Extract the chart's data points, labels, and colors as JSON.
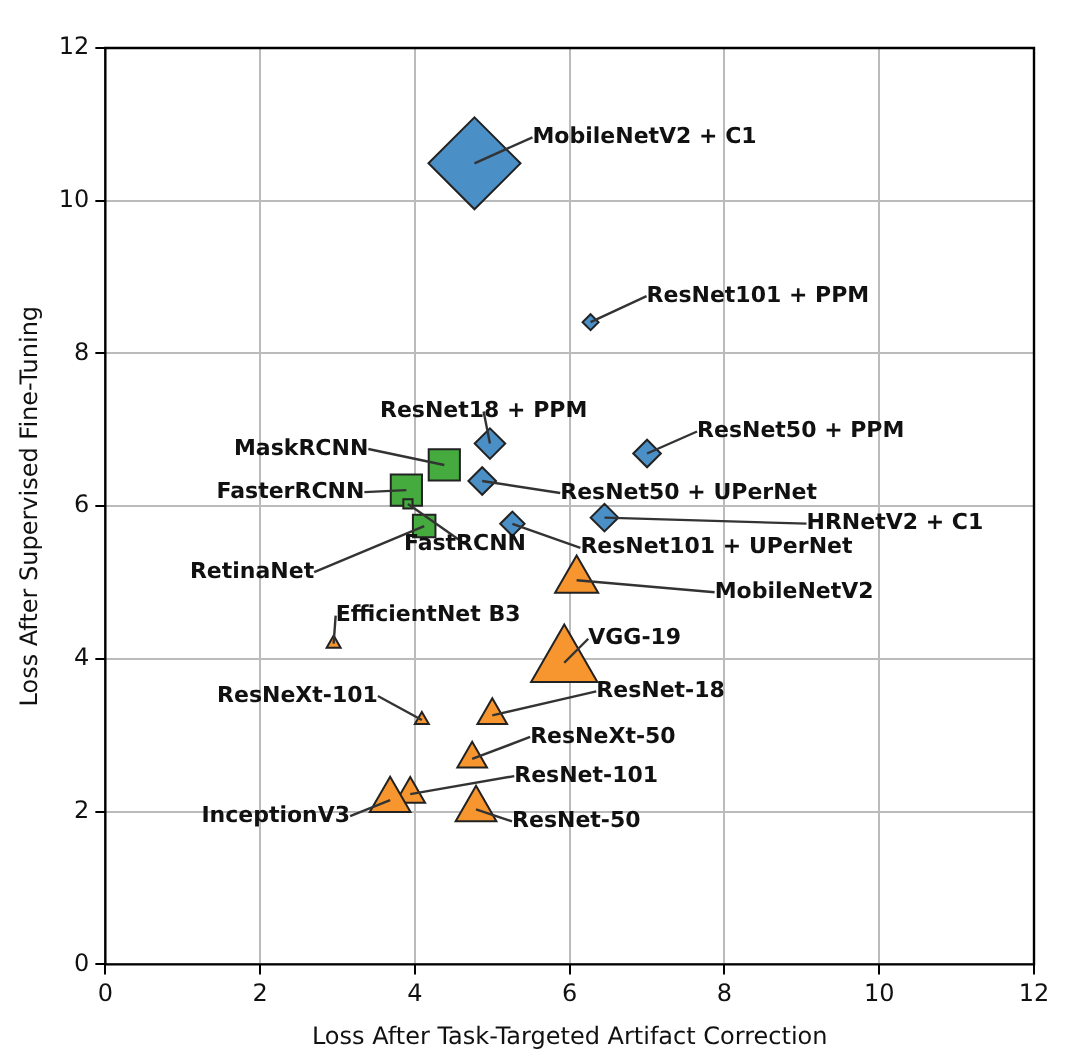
{
  "chart_data": {
    "type": "bubble",
    "xlabel": "Loss After Task-Targeted Artifact Correction",
    "ylabel": "Loss After Supervised Fine-Tuning",
    "xlim": [
      0,
      12
    ],
    "ylim": [
      0,
      12
    ],
    "xticks": [
      0,
      2,
      4,
      6,
      8,
      10,
      12
    ],
    "yticks": [
      0,
      2,
      4,
      6,
      8,
      10,
      12
    ],
    "grid": true,
    "legend": false,
    "series": [
      {
        "color": "#4a8fc6",
        "marker": "diamond",
        "x": [
          4.77,
          6.27,
          4.97,
          7.0,
          4.87,
          6.45,
          5.26
        ],
        "values": [
          10.49,
          8.41,
          6.82,
          6.69,
          6.33,
          5.85,
          5.77
        ],
        "sizes": [
          1,
          0.03,
          0.11,
          0.09,
          0.09,
          0.09,
          0.07
        ]
      },
      {
        "color": "#45ab3f",
        "marker": "square",
        "x": [
          4.38,
          3.89,
          3.91,
          4.12
        ],
        "values": [
          6.54,
          6.21,
          6.03,
          5.74
        ],
        "sizes": [
          0.23,
          0.23,
          0.02,
          0.12
        ]
      },
      {
        "color": "#f7952f",
        "marker": "triangle",
        "x": [
          6.09,
          2.95,
          5.93,
          5.0,
          4.09,
          4.74,
          3.94,
          3.68,
          4.79
        ],
        "values": [
          5.03,
          4.2,
          3.95,
          3.26,
          3.2,
          2.69,
          2.23,
          2.15,
          2.03
        ],
        "sizes": [
          0.19,
          0.02,
          0.45,
          0.09,
          0.02,
          0.09,
          0.09,
          0.17,
          0.17
        ]
      }
    ],
    "annotations": [
      {
        "text": "MobileNetV2 + C1",
        "x": 4.77,
        "y": 10.49
      },
      {
        "text": "ResNet101 + PPM",
        "x": 6.27,
        "y": 8.41
      },
      {
        "text": "ResNet18 + PPM",
        "x": 4.97,
        "y": 6.82
      },
      {
        "text": "ResNet50 + PPM",
        "x": 7.0,
        "y": 6.69
      },
      {
        "text": "ResNet50 + UPerNet",
        "x": 4.87,
        "y": 6.33
      },
      {
        "text": "HRNetV2 + C1",
        "x": 6.45,
        "y": 5.85
      },
      {
        "text": "ResNet101 + UPerNet",
        "x": 5.26,
        "y": 5.77
      },
      {
        "text": "MaskRCNN",
        "x": 4.38,
        "y": 6.54
      },
      {
        "text": "FasterRCNN",
        "x": 3.89,
        "y": 6.21
      },
      {
        "text": "FastRCNN",
        "x": 3.91,
        "y": 6.03
      },
      {
        "text": "RetinaNet",
        "x": 4.12,
        "y": 5.74
      },
      {
        "text": "MobileNetV2",
        "x": 6.09,
        "y": 5.03
      },
      {
        "text": "EfficientNet B3",
        "x": 2.95,
        "y": 4.2
      },
      {
        "text": "VGG-19",
        "x": 5.93,
        "y": 3.95
      },
      {
        "text": "ResNet-18",
        "x": 5.0,
        "y": 3.26
      },
      {
        "text": "ResNeXt-101",
        "x": 4.09,
        "y": 3.2
      },
      {
        "text": "ResNeXt-50",
        "x": 4.74,
        "y": 2.69
      },
      {
        "text": "ResNet-101",
        "x": 3.94,
        "y": 2.23
      },
      {
        "text": "InceptionV3",
        "x": 3.68,
        "y": 2.15
      },
      {
        "text": "ResNet-50",
        "x": 4.79,
        "y": 2.03
      }
    ]
  }
}
